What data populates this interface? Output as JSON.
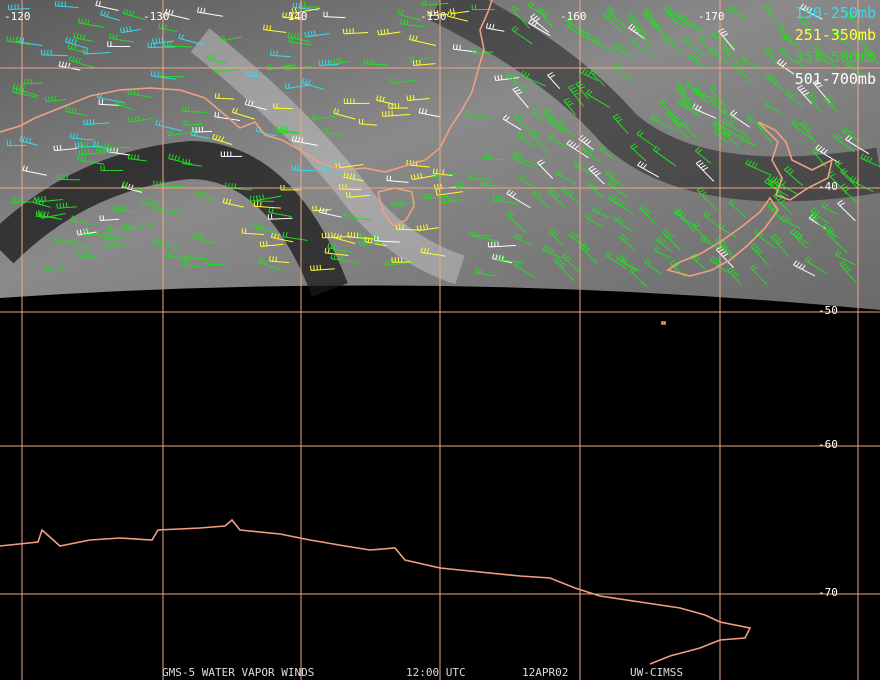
{
  "longitude_labels": [
    "-120",
    "-130",
    "-140",
    "-150",
    "-160",
    "-170"
  ],
  "latitude_labels": [
    "-40",
    "-50",
    "-60",
    "-70"
  ],
  "legend": [
    {
      "label": "150-250mb",
      "color": "#33ddee"
    },
    {
      "label": "251-350mb",
      "color": "#ffff33"
    },
    {
      "label": "351-500mb",
      "color": "#22dd22"
    },
    {
      "label": "501-700mb",
      "color": "#ffffff"
    }
  ],
  "footer": {
    "product": "GMS-5 WATER VAPOR WINDS",
    "time": "12:00 UTC",
    "date": "12APR02",
    "source": "UW-CIMSS"
  }
}
